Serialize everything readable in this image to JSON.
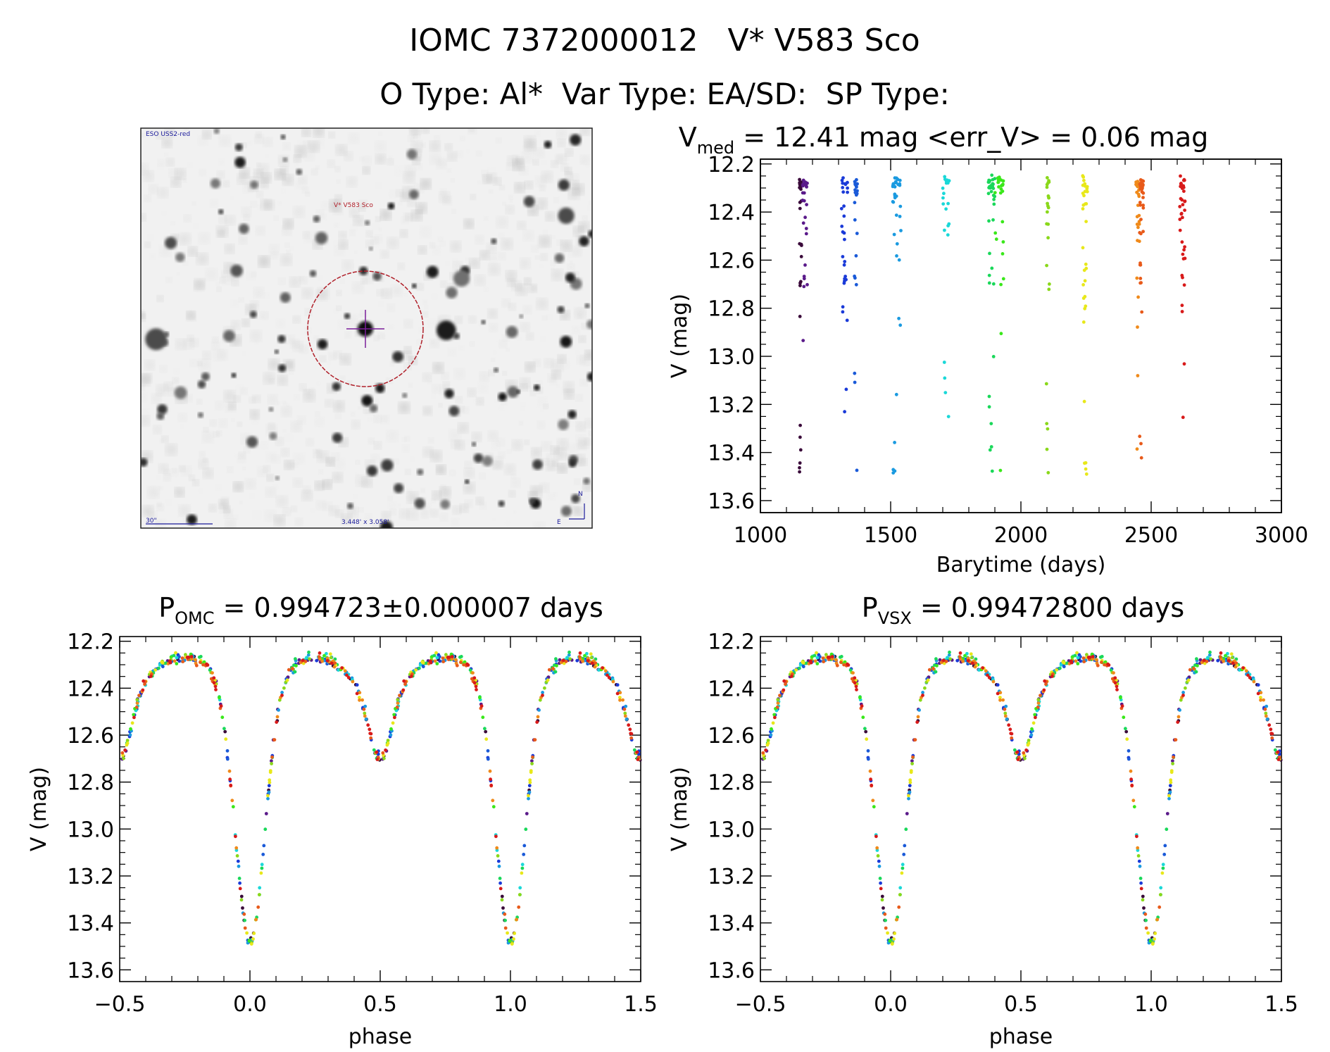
{
  "header": {
    "title": "IOMC 7372000012   V* V583 Sco",
    "subtitle": "O Type: Al*  Var Type: EA/SD:  SP Type:"
  },
  "image_panel": {
    "survey_label": "ESO USS2-red",
    "target_label": "V* V583 Sco",
    "scale_label": "30\"",
    "fov_label": "3.448' x 3.058'",
    "north_label": "N",
    "east_label": "E"
  },
  "colors": {
    "target_circle": "#b0202a",
    "crosshair": "#7a1f9a",
    "annotation": "#1a1a9a"
  },
  "seasons": [
    {
      "name": "s1",
      "t_start": 1150,
      "t_end": 1158,
      "color": "#3a0a3a"
    },
    {
      "name": "s2",
      "t_start": 1162,
      "t_end": 1180,
      "color": "#5a1a8a"
    },
    {
      "name": "s3",
      "t_start": 1310,
      "t_end": 1335,
      "color": "#1a3ad8"
    },
    {
      "name": "s4",
      "t_start": 1360,
      "t_end": 1372,
      "color": "#1a5ad8"
    },
    {
      "name": "s5",
      "t_start": 1508,
      "t_end": 1540,
      "color": "#1a9ae0"
    },
    {
      "name": "s6",
      "t_start": 1700,
      "t_end": 1725,
      "color": "#1ad8d8"
    },
    {
      "name": "s7",
      "t_start": 1875,
      "t_end": 1900,
      "color": "#1ad85a"
    },
    {
      "name": "s8",
      "t_start": 1900,
      "t_end": 1935,
      "color": "#3ae81a"
    },
    {
      "name": "s9",
      "t_start": 2095,
      "t_end": 2110,
      "color": "#8ad81a"
    },
    {
      "name": "s10",
      "t_start": 2235,
      "t_end": 2255,
      "color": "#e8e81a"
    },
    {
      "name": "s11",
      "t_start": 2440,
      "t_end": 2455,
      "color": "#f08a1a"
    },
    {
      "name": "s12",
      "t_start": 2455,
      "t_end": 2470,
      "color": "#e85a1a"
    },
    {
      "name": "s13",
      "t_start": 2610,
      "t_end": 2630,
      "color": "#d81a1a"
    }
  ],
  "chart_data": [
    {
      "type": "scatter",
      "panel": "time-series",
      "title": "V_med = 12.41 mag <err_V> = 0.06 mag",
      "title_parts": {
        "main": "V",
        "sub": "med",
        "rest": " = 12.41 mag <err_V> = 0.06 mag"
      },
      "xlabel": "Barytime (days)",
      "ylabel": "V (mag)",
      "xlim": [
        1000,
        3000
      ],
      "ylim": [
        13.65,
        12.18
      ],
      "xticks": [
        1000,
        1500,
        2000,
        2500,
        3000
      ],
      "xtick_labels": [
        "1000",
        "1500",
        "2000",
        "2500",
        "3000"
      ],
      "yticks": [
        12.2,
        12.4,
        12.6,
        12.8,
        13.0,
        13.2,
        13.4,
        13.6
      ],
      "ytick_labels": [
        "12.2",
        "12.4",
        "12.6",
        "12.8",
        "13.0",
        "13.2",
        "13.4",
        "13.6"
      ],
      "median_V": 12.41,
      "mean_err_V": 0.06
    },
    {
      "type": "scatter",
      "panel": "phase-omc",
      "title": "P_OMC = 0.994723±0.000007 days",
      "title_parts": {
        "main": "P",
        "sub": "OMC",
        "rest": " = 0.994723±0.000007 days"
      },
      "xlabel": "phase",
      "ylabel": "V (mag)",
      "xlim": [
        -0.5,
        1.5
      ],
      "ylim": [
        13.65,
        12.18
      ],
      "xticks": [
        -0.5,
        0.0,
        0.5,
        1.0,
        1.5
      ],
      "xtick_labels": [
        "−0.5",
        "0.0",
        "0.5",
        "1.0",
        "1.5"
      ],
      "yticks": [
        12.2,
        12.4,
        12.6,
        12.8,
        13.0,
        13.2,
        13.4,
        13.6
      ],
      "ytick_labels": [
        "12.2",
        "12.4",
        "12.6",
        "12.8",
        "13.0",
        "13.2",
        "13.4",
        "13.6"
      ],
      "period_days": 0.994723,
      "period_err_days": 7e-06
    },
    {
      "type": "scatter",
      "panel": "phase-vsx",
      "title": "P_VSX = 0.99472800 days",
      "title_parts": {
        "main": "P",
        "sub": "VSX",
        "rest": " = 0.99472800 days"
      },
      "xlabel": "phase",
      "ylabel": "V (mag)",
      "xlim": [
        -0.5,
        1.5
      ],
      "ylim": [
        13.65,
        12.18
      ],
      "xticks": [
        -0.5,
        0.0,
        0.5,
        1.0,
        1.5
      ],
      "xtick_labels": [
        "−0.5",
        "0.0",
        "0.5",
        "1.0",
        "1.5"
      ],
      "yticks": [
        12.2,
        12.4,
        12.6,
        12.8,
        13.0,
        13.2,
        13.4,
        13.6
      ],
      "ytick_labels": [
        "12.2",
        "12.4",
        "12.6",
        "12.8",
        "13.0",
        "13.2",
        "13.4",
        "13.6"
      ],
      "period_days": 0.994728
    }
  ],
  "light_curve_model": {
    "max_mag": 12.33,
    "primary_min_mag": 13.42,
    "secondary_min_mag": 12.64,
    "primary_width": 0.055,
    "secondary_width": 0.045
  }
}
